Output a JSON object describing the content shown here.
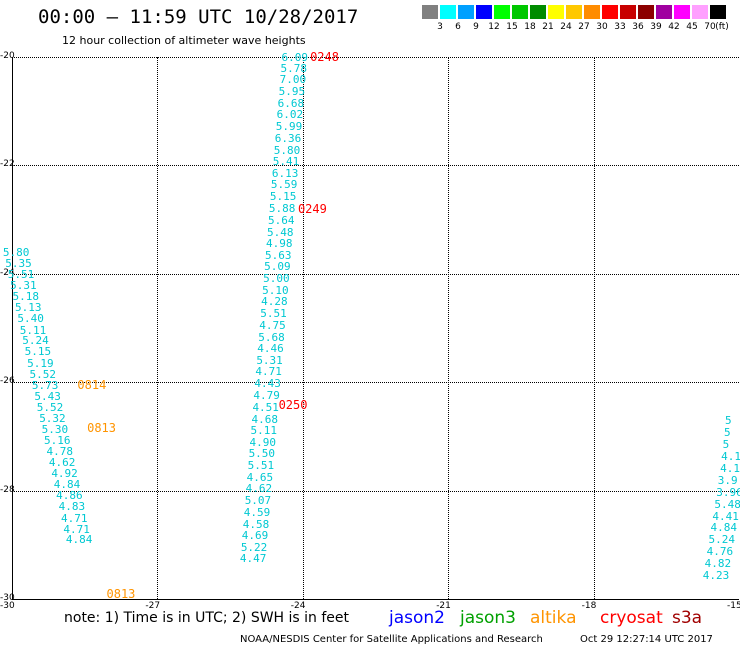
{
  "header": {
    "title": "00:00 – 11:59 UTC 10/28/2017",
    "subtitle": "12 hour collection of altimeter wave heights"
  },
  "colorbar": {
    "unit_label": "(ft)",
    "levels": [
      {
        "label": "3",
        "color": "#808080"
      },
      {
        "label": "6",
        "color": "#00ffff"
      },
      {
        "label": "9",
        "color": "#00a0ff"
      },
      {
        "label": "12",
        "color": "#0000ff"
      },
      {
        "label": "15",
        "color": "#00ff00"
      },
      {
        "label": "18",
        "color": "#00c800"
      },
      {
        "label": "21",
        "color": "#008c00"
      },
      {
        "label": "24",
        "color": "#ffff00"
      },
      {
        "label": "27",
        "color": "#ffc800"
      },
      {
        "label": "30",
        "color": "#ff8c00"
      },
      {
        "label": "33",
        "color": "#ff0000"
      },
      {
        "label": "36",
        "color": "#c80000"
      },
      {
        "label": "39",
        "color": "#8c0000"
      },
      {
        "label": "42",
        "color": "#a000a0"
      },
      {
        "label": "45",
        "color": "#ff00ff"
      },
      {
        "label": "70",
        "color": "#ffa0ff"
      },
      {
        "label": "",
        "color": "#000000"
      }
    ]
  },
  "map": {
    "lon_range": [
      -30,
      -15
    ],
    "lat_range": [
      -30,
      -20
    ],
    "lat_ticks": [
      -20,
      -22,
      -24,
      -26,
      -28,
      -30
    ],
    "lon_ticks": [
      -27,
      -24,
      -21,
      -18,
      -15
    ],
    "lat_tick_labels": [
      "-20",
      "-22",
      "-24",
      "-26",
      "-28",
      "-30"
    ],
    "lon_tick_labels": [
      "-27",
      "-24",
      "-21",
      "-18",
      "-15"
    ],
    "corner_label": "-30",
    "obs_color": "#00c8d2",
    "tracks": [
      {
        "points": [
          {
            "lon": -24.15,
            "lat": -20.0,
            "v": "6.09"
          },
          {
            "lon": -24.17,
            "lat": -20.2,
            "v": "5.78"
          },
          {
            "lon": -24.19,
            "lat": -20.41,
            "v": "7.00"
          },
          {
            "lon": -24.21,
            "lat": -20.63,
            "v": "5.95"
          },
          {
            "lon": -24.23,
            "lat": -20.84,
            "v": "6.68"
          },
          {
            "lon": -24.25,
            "lat": -21.06,
            "v": "6.02"
          },
          {
            "lon": -24.27,
            "lat": -21.27,
            "v": "5.99"
          },
          {
            "lon": -24.29,
            "lat": -21.49,
            "v": "6.36"
          },
          {
            "lon": -24.31,
            "lat": -21.71,
            "v": "5.80"
          },
          {
            "lon": -24.33,
            "lat": -21.92,
            "v": "5.41"
          },
          {
            "lon": -24.35,
            "lat": -22.14,
            "v": "6.13"
          },
          {
            "lon": -24.37,
            "lat": -22.35,
            "v": "5.59"
          },
          {
            "lon": -24.39,
            "lat": -22.57,
            "v": "5.15"
          },
          {
            "lon": -24.41,
            "lat": -22.78,
            "v": "5.88"
          },
          {
            "lon": -24.43,
            "lat": -23.0,
            "v": "5.64"
          },
          {
            "lon": -24.45,
            "lat": -23.22,
            "v": "5.48"
          },
          {
            "lon": -24.47,
            "lat": -23.43,
            "v": "4.98"
          },
          {
            "lon": -24.49,
            "lat": -23.65,
            "v": "5.63"
          },
          {
            "lon": -24.51,
            "lat": -23.86,
            "v": "5.09"
          },
          {
            "lon": -24.53,
            "lat": -24.08,
            "v": "5.00"
          },
          {
            "lon": -24.55,
            "lat": -24.29,
            "v": "5.10"
          },
          {
            "lon": -24.57,
            "lat": -24.51,
            "v": "4.28"
          },
          {
            "lon": -24.59,
            "lat": -24.73,
            "v": "5.51"
          },
          {
            "lon": -24.61,
            "lat": -24.94,
            "v": "4.75"
          },
          {
            "lon": -24.63,
            "lat": -25.16,
            "v": "5.68"
          },
          {
            "lon": -24.65,
            "lat": -25.37,
            "v": "4.46"
          },
          {
            "lon": -24.67,
            "lat": -25.59,
            "v": "5.31"
          },
          {
            "lon": -24.69,
            "lat": -25.8,
            "v": "4.71"
          },
          {
            "lon": -24.71,
            "lat": -26.02,
            "v": "4.43"
          },
          {
            "lon": -24.73,
            "lat": -26.24,
            "v": "4.79"
          },
          {
            "lon": -24.75,
            "lat": -26.45,
            "v": "4.51"
          },
          {
            "lon": -24.77,
            "lat": -26.67,
            "v": "4.68"
          },
          {
            "lon": -24.79,
            "lat": -26.88,
            "v": "5.11"
          },
          {
            "lon": -24.81,
            "lat": -27.1,
            "v": "4.90"
          },
          {
            "lon": -24.83,
            "lat": -27.31,
            "v": "5.50"
          },
          {
            "lon": -24.85,
            "lat": -27.53,
            "v": "5.51"
          },
          {
            "lon": -24.87,
            "lat": -27.75,
            "v": "4.65"
          },
          {
            "lon": -24.89,
            "lat": -27.96,
            "v": "4.62"
          },
          {
            "lon": -24.91,
            "lat": -28.18,
            "v": "5.07"
          },
          {
            "lon": -24.93,
            "lat": -28.39,
            "v": "4.59"
          },
          {
            "lon": -24.95,
            "lat": -28.61,
            "v": "4.58"
          },
          {
            "lon": -24.97,
            "lat": -28.82,
            "v": "4.69"
          },
          {
            "lon": -24.99,
            "lat": -29.04,
            "v": "5.22"
          },
          {
            "lon": -25.01,
            "lat": -29.25,
            "v": "4.47"
          }
        ],
        "passes": [
          {
            "lon": -23.85,
            "lat": -20.0,
            "label": "0248",
            "color": "#ff0000"
          },
          {
            "lon": -24.1,
            "lat": -22.8,
            "label": "0249",
            "color": "#ff0000"
          },
          {
            "lon": -24.5,
            "lat": -26.42,
            "label": "0250",
            "color": "#ff0000"
          }
        ]
      },
      {
        "points": [
          {
            "lon": -29.9,
            "lat": -23.6,
            "v": "5.80"
          },
          {
            "lon": -29.85,
            "lat": -23.8,
            "v": "5.35"
          },
          {
            "lon": -29.8,
            "lat": -24.0,
            "v": "5.51"
          },
          {
            "lon": -29.75,
            "lat": -24.21,
            "v": "5.31"
          },
          {
            "lon": -29.7,
            "lat": -24.41,
            "v": "5.18"
          },
          {
            "lon": -29.65,
            "lat": -24.62,
            "v": "5.13"
          },
          {
            "lon": -29.6,
            "lat": -24.82,
            "v": "5.40"
          },
          {
            "lon": -29.55,
            "lat": -25.03,
            "v": "5.11"
          },
          {
            "lon": -29.5,
            "lat": -25.23,
            "v": "5.24"
          },
          {
            "lon": -29.45,
            "lat": -25.43,
            "v": "5.15"
          },
          {
            "lon": -29.4,
            "lat": -25.64,
            "v": "5.19"
          },
          {
            "lon": -29.35,
            "lat": -25.84,
            "v": "5.52"
          },
          {
            "lon": -29.3,
            "lat": -26.05,
            "v": "5.73"
          },
          {
            "lon": -29.25,
            "lat": -26.25,
            "v": "5.43"
          },
          {
            "lon": -29.2,
            "lat": -26.45,
            "v": "5.52"
          },
          {
            "lon": -29.15,
            "lat": -26.66,
            "v": "5.32"
          },
          {
            "lon": -29.1,
            "lat": -26.86,
            "v": "5.30"
          },
          {
            "lon": -29.05,
            "lat": -27.07,
            "v": "5.16"
          },
          {
            "lon": -29.0,
            "lat": -27.27,
            "v": "4.78"
          },
          {
            "lon": -28.95,
            "lat": -27.48,
            "v": "4.62"
          },
          {
            "lon": -28.9,
            "lat": -27.68,
            "v": "4.92"
          },
          {
            "lon": -28.85,
            "lat": -27.88,
            "v": "4.84"
          },
          {
            "lon": -28.8,
            "lat": -28.09,
            "v": "4.86"
          },
          {
            "lon": -28.75,
            "lat": -28.29,
            "v": "4.83"
          },
          {
            "lon": -28.7,
            "lat": -28.5,
            "v": "4.71"
          },
          {
            "lon": -28.65,
            "lat": -28.7,
            "v": "4.71"
          },
          {
            "lon": -28.6,
            "lat": -28.9,
            "v": "4.84"
          }
        ],
        "passes": [
          {
            "lon": -28.65,
            "lat": -26.05,
            "label": "0814",
            "color": "#ff9400"
          },
          {
            "lon": -28.45,
            "lat": -26.85,
            "label": "0813",
            "color": "#ff9400"
          },
          {
            "lon": -28.05,
            "lat": -29.9,
            "label": "0813",
            "color": "#ff9400"
          }
        ]
      },
      {
        "points": [
          {
            "lon": -15.0,
            "lat": -26.7,
            "v": "5"
          },
          {
            "lon": -15.02,
            "lat": -26.92,
            "v": "5"
          },
          {
            "lon": -15.05,
            "lat": -27.14,
            "v": "5"
          },
          {
            "lon": -15.08,
            "lat": -27.36,
            "v": "4.1"
          },
          {
            "lon": -15.1,
            "lat": -27.58,
            "v": "4.1"
          },
          {
            "lon": -15.15,
            "lat": -27.8,
            "v": "3.9"
          },
          {
            "lon": -15.18,
            "lat": -28.02,
            "v": "3.96"
          },
          {
            "lon": -15.22,
            "lat": -28.24,
            "v": "5.48"
          },
          {
            "lon": -15.26,
            "lat": -28.46,
            "v": "4.41"
          },
          {
            "lon": -15.3,
            "lat": -28.68,
            "v": "4.84"
          },
          {
            "lon": -15.34,
            "lat": -28.9,
            "v": "5.24"
          },
          {
            "lon": -15.38,
            "lat": -29.12,
            "v": "4.76"
          },
          {
            "lon": -15.42,
            "lat": -29.34,
            "v": "4.82"
          },
          {
            "lon": -15.46,
            "lat": -29.56,
            "v": "4.23"
          }
        ],
        "passes": []
      }
    ]
  },
  "footer": {
    "note": "note: 1) Time is in UTC; 2) SWH is in feet",
    "legend": [
      {
        "label": "jason2",
        "color": "#0000ff"
      },
      {
        "label": "jason3",
        "color": "#00a000"
      },
      {
        "label": "altika",
        "color": "#ff9400"
      },
      {
        "label": "cryosat",
        "color": "#ff0000"
      },
      {
        "label": "s3a",
        "color": "#a00000"
      }
    ],
    "credit": "NOAA/NESDIS Center for Satellite Applications and Research",
    "timestamp": "Oct 29 12:27:14 UTC 2017"
  }
}
